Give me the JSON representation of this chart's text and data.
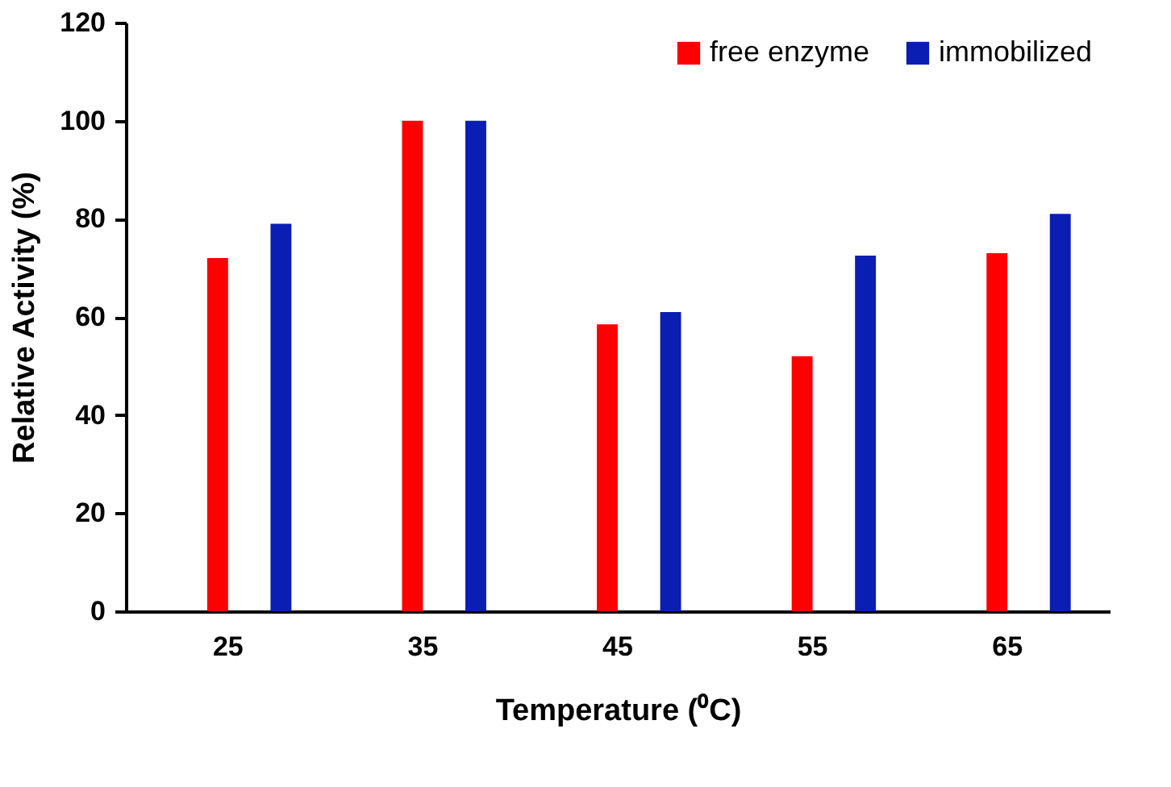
{
  "chart_data": {
    "type": "bar",
    "xlabel": "Temperature (⁰C)",
    "ylabel": "Relative Activity (%)",
    "categories": [
      "25",
      "35",
      "45",
      "55",
      "65"
    ],
    "series": [
      {
        "name": "free enzyme",
        "color": "#ff0000",
        "values": [
          72,
          100,
          58.5,
          52,
          73
        ]
      },
      {
        "name": "immobilized",
        "color": "#0a1eb4",
        "values": [
          79,
          100,
          61,
          72.5,
          81
        ]
      }
    ],
    "ylim": [
      0,
      120
    ],
    "yticks": [
      0,
      20,
      40,
      60,
      80,
      100,
      120
    ],
    "grid": false,
    "legend": "top right"
  }
}
